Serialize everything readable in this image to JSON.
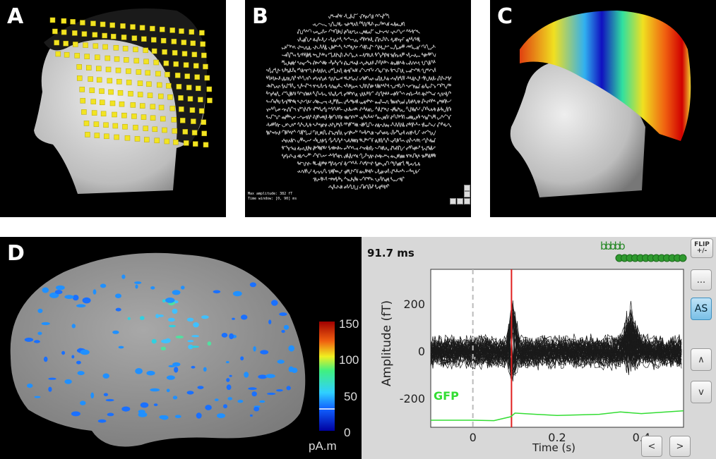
{
  "panels": {
    "a": {
      "label": "A"
    },
    "b": {
      "label": "B",
      "info_line1": "Max amplitude: 382 fT",
      "info_line2": "Time window: [0, 90] ms"
    },
    "c": {
      "label": "C"
    },
    "d": {
      "label": "D",
      "colorbar": {
        "ticks": [
          "150",
          "100",
          "50",
          "0"
        ],
        "unit": "pA.m"
      }
    },
    "timeseries": {
      "time_readout": "91.7 ms",
      "gfp_label": "GFP",
      "buttons": {
        "flip_line1": "FLIP",
        "flip_line2": "+/-",
        "more": "...",
        "as": "AS",
        "up": "∧",
        "down": "v",
        "prev": "<",
        "next": ">"
      },
      "event_marker_text": "bbbbb"
    }
  },
  "chart_data": {
    "type": "line",
    "xlabel": "Time (s)",
    "ylabel": "Amplitude (fT)",
    "xlim": [
      -0.1,
      0.5
    ],
    "ylim": [
      -320,
      350
    ],
    "xticks": [
      "0",
      "0.2",
      "0.4"
    ],
    "yticks": [
      "200",
      "0",
      "-200"
    ],
    "cursor_time": 0.0917,
    "zero_line": 0,
    "series": [
      {
        "name": "GFP",
        "color": "#33dd33",
        "x": [
          -0.1,
          0.0,
          0.05,
          0.09,
          0.1,
          0.2,
          0.3,
          0.35,
          0.4,
          0.5
        ],
        "y": [
          -290,
          -290,
          -292,
          -275,
          -260,
          -270,
          -265,
          -255,
          -262,
          -250
        ]
      }
    ],
    "colors": {
      "cursor": "#e02020",
      "traces": "#1a1a1a",
      "gfp": "#33dd33"
    }
  }
}
